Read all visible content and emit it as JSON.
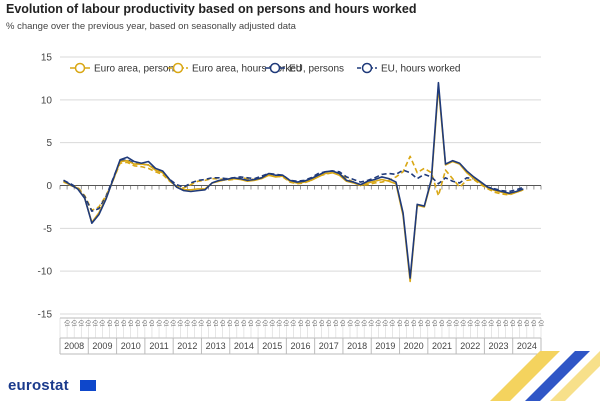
{
  "title": "Evolution of labour productivity based on persons and hours worked",
  "subtitle": "% change over the previous year, based on seasonally adjusted data",
  "logo": "eurostat",
  "colors": {
    "euro_area": "#d9a714",
    "eu": "#1f3a7a",
    "grid": "#d9d9d9",
    "axis_text": "#444444"
  },
  "chart_data": {
    "type": "line",
    "ylim": [
      -15,
      15
    ],
    "yticks": [
      15,
      10,
      5,
      0,
      -5,
      -10,
      -15
    ],
    "quarter_label": "Q1",
    "years": [
      "2008",
      "2009",
      "2010",
      "2011",
      "2012",
      "2013",
      "2014",
      "2015",
      "2016",
      "2017",
      "2018",
      "2019",
      "2020",
      "2021",
      "2022",
      "2023",
      "2024"
    ],
    "x": [
      "2008Q1",
      "2008Q2",
      "2008Q3",
      "2008Q4",
      "2009Q1",
      "2009Q2",
      "2009Q3",
      "2009Q4",
      "2010Q1",
      "2010Q2",
      "2010Q3",
      "2010Q4",
      "2011Q1",
      "2011Q2",
      "2011Q3",
      "2011Q4",
      "2012Q1",
      "2012Q2",
      "2012Q3",
      "2012Q4",
      "2013Q1",
      "2013Q2",
      "2013Q3",
      "2013Q4",
      "2014Q1",
      "2014Q2",
      "2014Q3",
      "2014Q4",
      "2015Q1",
      "2015Q2",
      "2015Q3",
      "2015Q4",
      "2016Q1",
      "2016Q2",
      "2016Q3",
      "2016Q4",
      "2017Q1",
      "2017Q2",
      "2017Q3",
      "2017Q4",
      "2018Q1",
      "2018Q2",
      "2018Q3",
      "2018Q4",
      "2019Q1",
      "2019Q2",
      "2019Q3",
      "2019Q4",
      "2020Q1",
      "2020Q2",
      "2020Q3",
      "2020Q4",
      "2021Q1",
      "2021Q2",
      "2021Q3",
      "2021Q4",
      "2022Q1",
      "2022Q2",
      "2022Q3",
      "2022Q4",
      "2023Q1",
      "2023Q2",
      "2023Q3",
      "2023Q4",
      "2024Q1",
      "2024Q2",
      "2024Q3",
      "2024Q4"
    ],
    "series": [
      {
        "name": "Euro area, persons",
        "dashed": false,
        "values": [
          0.5,
          0,
          -0.3,
          -1.5,
          -4.3,
          -3.2,
          -1.5,
          0.6,
          2.8,
          2.9,
          2.5,
          2.5,
          2.4,
          1.8,
          1.5,
          0.6,
          -0.2,
          -0.5,
          -0.5,
          -0.4,
          -0.4,
          0.3,
          0.5,
          0.7,
          0.8,
          0.7,
          0.5,
          0.6,
          0.8,
          1.2,
          1.0,
          1.1,
          0.5,
          0.3,
          0.4,
          0.6,
          1.0,
          1.4,
          1.5,
          1.2,
          0.5,
          0.3,
          0,
          0.3,
          0.5,
          0.7,
          0.5,
          0.2,
          -3.5,
          -11.2,
          -2.3,
          -2.5,
          0.5,
          11.5,
          2.4,
          2.8,
          2.5,
          1.5,
          0.8,
          0.3,
          -0.3,
          -0.6,
          -0.8,
          -1.0,
          -0.8,
          -0.5,
          null,
          null
        ]
      },
      {
        "name": "Euro area, hours worked",
        "dashed": true,
        "values": [
          0.4,
          0.1,
          -0.2,
          -1.2,
          -2.9,
          -2.5,
          -1.2,
          0.6,
          2.6,
          2.7,
          2.3,
          2.2,
          2.0,
          1.6,
          1.3,
          0.5,
          -0.1,
          -0.3,
          0.1,
          0.5,
          0.6,
          0.8,
          0.8,
          0.6,
          0.7,
          0.9,
          0.8,
          0.7,
          0.9,
          1.2,
          1.1,
          1.0,
          0.4,
          0.2,
          0.3,
          0.6,
          1.1,
          1.3,
          1.5,
          1.4,
          0.8,
          0.4,
          0,
          0.1,
          0.3,
          0.4,
          0.6,
          1.0,
          1.6,
          3.4,
          1.5,
          2.0,
          1.5,
          -1.2,
          1.8,
          0.8,
          -0.2,
          0.6,
          0.7,
          0.1,
          -0.4,
          -0.8,
          -1.0,
          -1.1,
          -0.8,
          -0.5,
          null,
          null
        ]
      },
      {
        "name": "EU, persons",
        "dashed": false,
        "values": [
          0.6,
          0.1,
          -0.4,
          -1.5,
          -4.4,
          -3.4,
          -1.6,
          0.7,
          3.0,
          3.3,
          2.8,
          2.6,
          2.8,
          2.0,
          1.7,
          0.7,
          -0.2,
          -0.6,
          -0.7,
          -0.6,
          -0.5,
          0.3,
          0.6,
          0.7,
          0.9,
          0.8,
          0.6,
          0.7,
          0.9,
          1.4,
          1.2,
          1.2,
          0.6,
          0.4,
          0.5,
          0.8,
          1.2,
          1.6,
          1.7,
          1.4,
          0.6,
          0.4,
          0.1,
          0.5,
          0.7,
          1.0,
          0.8,
          0.4,
          -3.2,
          -10.8,
          -2.2,
          -2.4,
          0.7,
          12.0,
          2.5,
          2.9,
          2.6,
          1.7,
          1.0,
          0.4,
          -0.2,
          -0.5,
          -0.7,
          -0.9,
          -0.7,
          -0.4,
          null,
          null
        ]
      },
      {
        "name": "EU, hours worked",
        "dashed": true,
        "values": [
          0.6,
          0.2,
          -0.3,
          -1.3,
          -3.0,
          -2.7,
          -1.3,
          0.8,
          2.9,
          3.0,
          2.6,
          2.5,
          2.4,
          1.9,
          1.6,
          0.7,
          0.1,
          -0.2,
          0.3,
          0.6,
          0.7,
          0.9,
          0.9,
          0.8,
          0.9,
          1.0,
          0.9,
          0.8,
          1.1,
          1.4,
          1.3,
          1.2,
          0.6,
          0.5,
          0.6,
          0.9,
          1.4,
          1.6,
          1.7,
          1.6,
          1.0,
          0.7,
          0.4,
          0.6,
          0.9,
          1.3,
          1.4,
          1.3,
          1.8,
          1.5,
          0.8,
          1.3,
          1.0,
          0.2,
          0.9,
          0.5,
          0.3,
          0.9,
          0.8,
          0.3,
          -0.2,
          -0.4,
          -0.6,
          -0.7,
          -0.5,
          -0.2,
          null,
          null
        ]
      }
    ]
  }
}
